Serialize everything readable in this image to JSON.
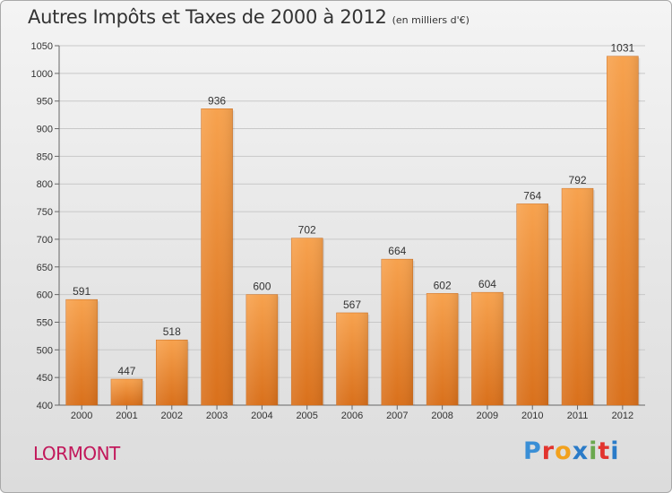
{
  "title": "Autres Impôts et Taxes de 2000 à 2012",
  "subtitle": "(en milliers d'€)",
  "town": "LORMONT",
  "brand": {
    "letters": [
      {
        "ch": "P",
        "color": "#3a8fd6"
      },
      {
        "ch": "r",
        "color": "#e2342e"
      },
      {
        "ch": "o",
        "color": "#f2a11d"
      },
      {
        "ch": "x",
        "color": "#2a7bc8"
      },
      {
        "ch": "i",
        "color": "#6aa84f"
      },
      {
        "ch": "t",
        "color": "#e2342e"
      },
      {
        "ch": "i",
        "color": "#2a7bc8"
      }
    ]
  },
  "chart_data": {
    "type": "bar",
    "categories": [
      "2000",
      "2001",
      "2002",
      "2003",
      "2004",
      "2005",
      "2006",
      "2007",
      "2008",
      "2009",
      "2010",
      "2011",
      "2012"
    ],
    "values": [
      591,
      447,
      518,
      936,
      600,
      702,
      567,
      664,
      602,
      604,
      764,
      792,
      1031
    ],
    "title": "Autres Impôts et Taxes de 2000 à 2012",
    "xlabel": "",
    "ylabel": "",
    "ylim": [
      400,
      1050
    ],
    "yticks": [
      400,
      450,
      500,
      550,
      600,
      650,
      700,
      750,
      800,
      850,
      900,
      950,
      1000,
      1050
    ],
    "grid": true,
    "bar_color": "#f0943a"
  }
}
